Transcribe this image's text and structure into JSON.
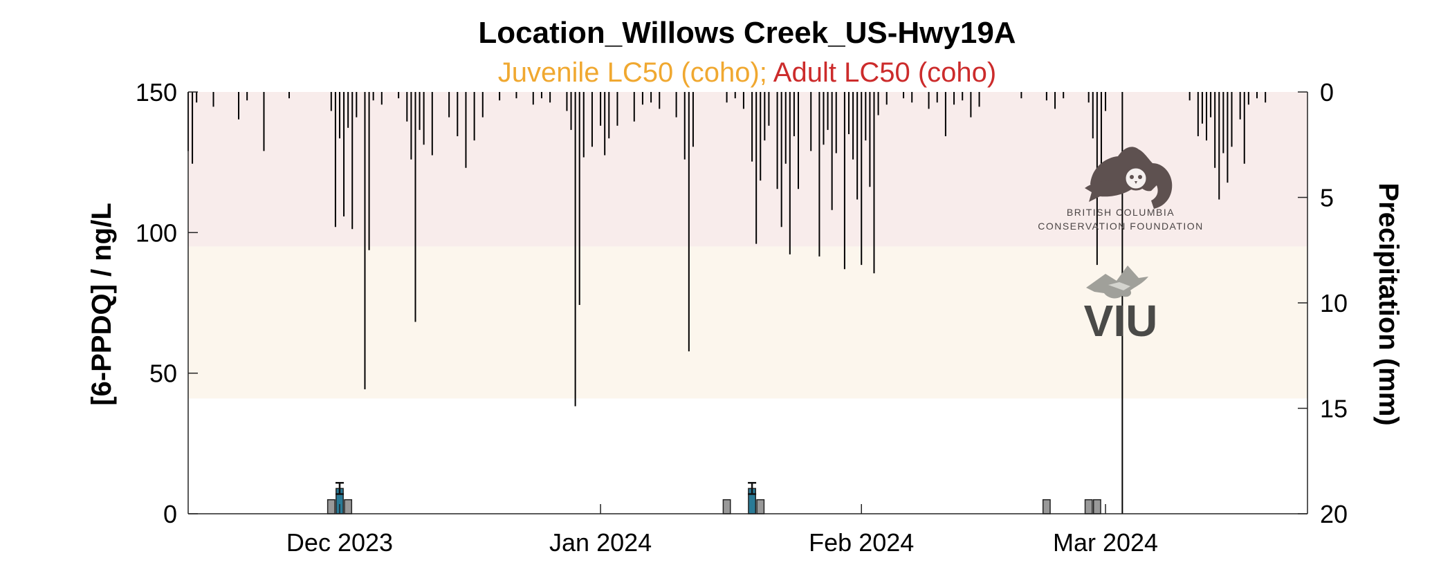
{
  "chart_data": {
    "type": "bar",
    "title": "Location_Willows Creek_US-Hwy19A",
    "subtitle": {
      "juvenile": "Juvenile LC50 (coho);",
      "adult": "Adult LC50 (coho)"
    },
    "ylabel": "[6-PPDQ] / ng/L",
    "y2label": "Precipitation (mm)",
    "ylim": [
      0,
      150
    ],
    "y2lim": [
      0,
      20
    ],
    "y2_reversed": true,
    "xlim": [
      "2023-11-13",
      "2024-03-25"
    ],
    "yticks": [
      {
        "value": 0,
        "label": "0"
      },
      {
        "value": 50,
        "label": "50"
      },
      {
        "value": 100,
        "label": "100"
      },
      {
        "value": 150,
        "label": "150"
      }
    ],
    "y2ticks": [
      {
        "value": 0,
        "label": "0"
      },
      {
        "value": 5,
        "label": "5"
      },
      {
        "value": 10,
        "label": "10"
      },
      {
        "value": 15,
        "label": "15"
      },
      {
        "value": 20,
        "label": "20"
      }
    ],
    "xticks": [
      {
        "date": "2023-12-01",
        "label": "Dec 2023"
      },
      {
        "date": "2024-01-01",
        "label": "Jan 2024"
      },
      {
        "date": "2024-02-01",
        "label": "Feb 2024"
      },
      {
        "date": "2024-03-01",
        "label": "Mar 2024"
      }
    ],
    "bands": [
      {
        "name": "Adult LC50 (coho)",
        "from": 95,
        "to": 150,
        "color": "#f8eceb"
      },
      {
        "name": "Juvenile LC50 (coho)",
        "from": 41,
        "to": 95,
        "color": "#fcf6ed"
      }
    ],
    "colors": {
      "juvenile": "#f0a830",
      "adult": "#cc2b2b",
      "sample_bar": "#999999",
      "highlight_bar": "#2a7a96",
      "precip": "#000000"
    },
    "sample_bars": [
      {
        "date": "2023-11-30",
        "value": 5,
        "highlight": false
      },
      {
        "date": "2023-12-01",
        "value": 9,
        "error": 2,
        "highlight": true
      },
      {
        "date": "2023-12-02",
        "value": 5,
        "highlight": false
      },
      {
        "date": "2024-01-16",
        "value": 5,
        "highlight": false
      },
      {
        "date": "2024-01-19",
        "value": 9,
        "error": 2,
        "highlight": true
      },
      {
        "date": "2024-01-20",
        "value": 5,
        "highlight": false
      },
      {
        "date": "2024-02-23",
        "value": 5,
        "highlight": false
      },
      {
        "date": "2024-02-28",
        "value": 5,
        "highlight": false
      },
      {
        "date": "2024-02-29",
        "value": 5,
        "highlight": false
      }
    ],
    "precipitation": [
      {
        "date": "2023-11-13",
        "mm": 2.8
      },
      {
        "date": "2023-11-13T12",
        "mm": 3.4
      },
      {
        "date": "2023-11-14",
        "mm": 0.5
      },
      {
        "date": "2023-11-16",
        "mm": 0.7
      },
      {
        "date": "2023-11-19",
        "mm": 1.3
      },
      {
        "date": "2023-11-20",
        "mm": 0.4
      },
      {
        "date": "2023-11-22",
        "mm": 2.8
      },
      {
        "date": "2023-11-25",
        "mm": 0.3
      },
      {
        "date": "2023-11-30",
        "mm": 0.9
      },
      {
        "date": "2023-11-30T12",
        "mm": 6.4
      },
      {
        "date": "2023-12-01",
        "mm": 2.2
      },
      {
        "date": "2023-12-01T12",
        "mm": 5.9
      },
      {
        "date": "2023-12-02",
        "mm": 1.7
      },
      {
        "date": "2023-12-02T12",
        "mm": 6.5
      },
      {
        "date": "2023-12-03",
        "mm": 1.2
      },
      {
        "date": "2023-12-04",
        "mm": 14.1
      },
      {
        "date": "2023-12-04T12",
        "mm": 7.5
      },
      {
        "date": "2023-12-05",
        "mm": 0.4
      },
      {
        "date": "2023-12-06",
        "mm": 0.6
      },
      {
        "date": "2023-12-08",
        "mm": 0.3
      },
      {
        "date": "2023-12-09",
        "mm": 1.4
      },
      {
        "date": "2023-12-09T12",
        "mm": 3.2
      },
      {
        "date": "2023-12-10",
        "mm": 10.9
      },
      {
        "date": "2023-12-10T12",
        "mm": 1.8
      },
      {
        "date": "2023-12-11",
        "mm": 2.5
      },
      {
        "date": "2023-12-12",
        "mm": 3.0
      },
      {
        "date": "2023-12-14",
        "mm": 1.2
      },
      {
        "date": "2023-12-15",
        "mm": 2.1
      },
      {
        "date": "2023-12-16",
        "mm": 3.6
      },
      {
        "date": "2023-12-17",
        "mm": 2.3
      },
      {
        "date": "2023-12-18",
        "mm": 1.2
      },
      {
        "date": "2023-12-20",
        "mm": 0.4
      },
      {
        "date": "2023-12-22",
        "mm": 0.3
      },
      {
        "date": "2023-12-24",
        "mm": 0.6
      },
      {
        "date": "2023-12-25",
        "mm": 0.3
      },
      {
        "date": "2023-12-26",
        "mm": 0.5
      },
      {
        "date": "2023-12-28",
        "mm": 0.9
      },
      {
        "date": "2023-12-28T12",
        "mm": 1.8
      },
      {
        "date": "2023-12-29",
        "mm": 14.9
      },
      {
        "date": "2023-12-29T12",
        "mm": 10.1
      },
      {
        "date": "2023-12-30",
        "mm": 3.1
      },
      {
        "date": "2023-12-31",
        "mm": 2.6
      },
      {
        "date": "2024-01-01",
        "mm": 1.6
      },
      {
        "date": "2024-01-01T12",
        "mm": 3.0
      },
      {
        "date": "2024-01-02",
        "mm": 2.2
      },
      {
        "date": "2024-01-03",
        "mm": 1.6
      },
      {
        "date": "2024-01-05",
        "mm": 1.4
      },
      {
        "date": "2024-01-06",
        "mm": 0.6
      },
      {
        "date": "2024-01-07",
        "mm": 0.5
      },
      {
        "date": "2024-01-08",
        "mm": 0.8
      },
      {
        "date": "2024-01-10",
        "mm": 1.2
      },
      {
        "date": "2024-01-11",
        "mm": 3.2
      },
      {
        "date": "2024-01-11T12",
        "mm": 12.3
      },
      {
        "date": "2024-01-12",
        "mm": 2.6
      },
      {
        "date": "2024-01-16",
        "mm": 0.5
      },
      {
        "date": "2024-01-17",
        "mm": 0.3
      },
      {
        "date": "2024-01-18",
        "mm": 0.8
      },
      {
        "date": "2024-01-19",
        "mm": 3.3
      },
      {
        "date": "2024-01-19T12",
        "mm": 7.2
      },
      {
        "date": "2024-01-20",
        "mm": 4.2
      },
      {
        "date": "2024-01-20T12",
        "mm": 2.3
      },
      {
        "date": "2024-01-21",
        "mm": 1.6
      },
      {
        "date": "2024-01-22",
        "mm": 4.6
      },
      {
        "date": "2024-01-22T12",
        "mm": 6.4
      },
      {
        "date": "2024-01-23",
        "mm": 3.4
      },
      {
        "date": "2024-01-23T12",
        "mm": 7.7
      },
      {
        "date": "2024-01-24",
        "mm": 2.1
      },
      {
        "date": "2024-01-24T12",
        "mm": 4.6
      },
      {
        "date": "2024-01-26",
        "mm": 2.8
      },
      {
        "date": "2024-01-27",
        "mm": 7.8
      },
      {
        "date": "2024-01-27T12",
        "mm": 2.5
      },
      {
        "date": "2024-01-28",
        "mm": 1.8
      },
      {
        "date": "2024-01-28T12",
        "mm": 5.6
      },
      {
        "date": "2024-01-29",
        "mm": 2.9
      },
      {
        "date": "2024-01-30",
        "mm": 8.4
      },
      {
        "date": "2024-01-30T12",
        "mm": 2.0
      },
      {
        "date": "2024-01-31",
        "mm": 3.2
      },
      {
        "date": "2024-01-31T12",
        "mm": 5.1
      },
      {
        "date": "2024-02-01",
        "mm": 8.2
      },
      {
        "date": "2024-02-01T12",
        "mm": 2.3
      },
      {
        "date": "2024-02-02",
        "mm": 4.5
      },
      {
        "date": "2024-02-02T12",
        "mm": 8.6
      },
      {
        "date": "2024-02-03",
        "mm": 1.1
      },
      {
        "date": "2024-02-04",
        "mm": 0.6
      },
      {
        "date": "2024-02-06",
        "mm": 0.3
      },
      {
        "date": "2024-02-07",
        "mm": 0.5
      },
      {
        "date": "2024-02-09",
        "mm": 0.8
      },
      {
        "date": "2024-02-10",
        "mm": 0.5
      },
      {
        "date": "2024-02-11",
        "mm": 2.1
      },
      {
        "date": "2024-02-12",
        "mm": 0.6
      },
      {
        "date": "2024-02-13",
        "mm": 0.4
      },
      {
        "date": "2024-02-14",
        "mm": 1.2
      },
      {
        "date": "2024-02-15",
        "mm": 0.7
      },
      {
        "date": "2024-02-20",
        "mm": 0.3
      },
      {
        "date": "2024-02-23",
        "mm": 0.4
      },
      {
        "date": "2024-02-24",
        "mm": 0.8
      },
      {
        "date": "2024-02-25",
        "mm": 0.3
      },
      {
        "date": "2024-02-28",
        "mm": 0.5
      },
      {
        "date": "2024-02-28T12",
        "mm": 2.2
      },
      {
        "date": "2024-02-29",
        "mm": 8.2
      },
      {
        "date": "2024-02-29T12",
        "mm": 3.8
      },
      {
        "date": "2024-03-01",
        "mm": 0.9
      },
      {
        "date": "2024-03-03",
        "mm": 20.0
      },
      {
        "date": "2024-03-11",
        "mm": 0.4
      },
      {
        "date": "2024-03-12",
        "mm": 2.1
      },
      {
        "date": "2024-03-12T12",
        "mm": 1.5
      },
      {
        "date": "2024-03-13",
        "mm": 2.3
      },
      {
        "date": "2024-03-13T12",
        "mm": 1.2
      },
      {
        "date": "2024-03-14",
        "mm": 3.6
      },
      {
        "date": "2024-03-14T12",
        "mm": 5.1
      },
      {
        "date": "2024-03-15",
        "mm": 2.9
      },
      {
        "date": "2024-03-15T12",
        "mm": 4.3
      },
      {
        "date": "2024-03-16",
        "mm": 2.6
      },
      {
        "date": "2024-03-17",
        "mm": 1.3
      },
      {
        "date": "2024-03-17T12",
        "mm": 3.4
      },
      {
        "date": "2024-03-18",
        "mm": 0.6
      },
      {
        "date": "2024-03-19",
        "mm": 0.3
      },
      {
        "date": "2024-03-20",
        "mm": 0.5
      }
    ]
  },
  "logos": {
    "bccf": {
      "name": "bccf-logo",
      "line1": "BRITISH COLUMBIA",
      "line2": "CONSERVATION FOUNDATION"
    },
    "viu": {
      "name": "viu-logo",
      "text": "VIU"
    }
  }
}
